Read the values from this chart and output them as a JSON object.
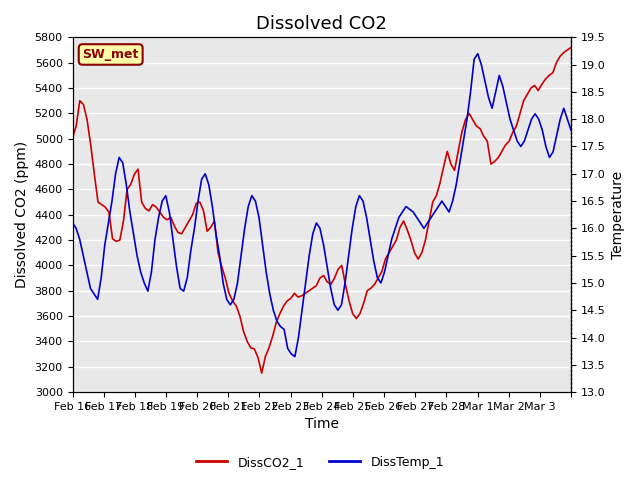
{
  "title": "Dissolved CO2",
  "xlabel": "Time",
  "ylabel_left": "Dissolved CO2 (ppm)",
  "ylabel_right": "Temperature",
  "ylim_left": [
    3000,
    5800
  ],
  "ylim_right": [
    13.0,
    19.5
  ],
  "yticks_left": [
    3000,
    3200,
    3400,
    3600,
    3800,
    4000,
    4200,
    4400,
    4600,
    4800,
    5000,
    5200,
    5400,
    5600,
    5800
  ],
  "yticks_right": [
    13.0,
    13.5,
    14.0,
    14.5,
    15.0,
    15.5,
    16.0,
    16.5,
    17.0,
    17.5,
    18.0,
    18.5,
    19.0,
    19.5
  ],
  "xtick_positions": [
    0,
    1,
    2,
    3,
    4,
    5,
    6,
    7,
    8,
    9,
    10,
    11,
    12,
    13,
    14,
    15,
    16
  ],
  "xtick_labels": [
    "Feb 16",
    "Feb 17",
    "Feb 18",
    "Feb 19",
    "Feb 20",
    "Feb 21",
    "Feb 22",
    "Feb 23",
    "Feb 24",
    "Feb 25",
    "Feb 26",
    "Feb 27",
    "Feb 28",
    "Mar 1",
    "Mar 2",
    "Mar 3",
    ""
  ],
  "legend_label": "SW_met",
  "legend_bg": "#ffffaa",
  "legend_edge": "#8b0000",
  "line1_label": "DissCO2_1",
  "line2_label": "DissTemp_1",
  "line1_color": "#cc0000",
  "line2_color": "#0000cc",
  "bg_color": "#e8e8e8",
  "fig_bg": "#ffffff",
  "grid_color": "#ffffff",
  "title_fontsize": 13,
  "axis_label_fontsize": 10,
  "tick_fontsize": 8,
  "co2_data": [
    5005,
    5100,
    5300,
    5270,
    5150,
    4950,
    4720,
    4500,
    4480,
    4460,
    4420,
    4210,
    4190,
    4200,
    4350,
    4600,
    4640,
    4720,
    4760,
    4500,
    4450,
    4430,
    4480,
    4460,
    4420,
    4380,
    4360,
    4380,
    4310,
    4260,
    4250,
    4300,
    4350,
    4400,
    4490,
    4500,
    4430,
    4270,
    4300,
    4350,
    4100,
    3990,
    3900,
    3780,
    3720,
    3680,
    3600,
    3480,
    3400,
    3350,
    3340,
    3270,
    3150,
    3280,
    3350,
    3440,
    3550,
    3620,
    3680,
    3720,
    3740,
    3780,
    3750,
    3760,
    3780,
    3800,
    3820,
    3840,
    3900,
    3920,
    3870,
    3850,
    3900,
    3970,
    4000,
    3850,
    3720,
    3620,
    3580,
    3620,
    3700,
    3800,
    3820,
    3850,
    3900,
    3950,
    4050,
    4100,
    4150,
    4200,
    4300,
    4350,
    4280,
    4200,
    4100,
    4050,
    4100,
    4200,
    4350,
    4500,
    4550,
    4650,
    4780,
    4900,
    4800,
    4750,
    4900,
    5050,
    5150,
    5200,
    5150,
    5100,
    5080,
    5020,
    4980,
    4800,
    4820,
    4850,
    4900,
    4950,
    4980,
    5050,
    5100,
    5200,
    5300,
    5350,
    5400,
    5420,
    5380,
    5430,
    5470,
    5500,
    5520,
    5600,
    5650,
    5680,
    5700,
    5720
  ],
  "temp_data": [
    16.1,
    16.0,
    15.8,
    15.5,
    15.2,
    14.9,
    14.8,
    14.7,
    15.1,
    15.7,
    16.1,
    16.5,
    17.0,
    17.3,
    17.2,
    16.8,
    16.3,
    15.9,
    15.5,
    15.2,
    15.0,
    14.85,
    15.2,
    15.8,
    16.2,
    16.5,
    16.6,
    16.3,
    15.8,
    15.3,
    14.9,
    14.85,
    15.1,
    15.6,
    16.0,
    16.5,
    16.9,
    17.0,
    16.8,
    16.4,
    15.9,
    15.5,
    15.0,
    14.7,
    14.6,
    14.7,
    15.0,
    15.5,
    16.0,
    16.4,
    16.6,
    16.5,
    16.2,
    15.7,
    15.2,
    14.8,
    14.5,
    14.3,
    14.2,
    14.15,
    13.8,
    13.7,
    13.65,
    14.0,
    14.5,
    15.0,
    15.5,
    15.9,
    16.1,
    16.0,
    15.7,
    15.3,
    14.9,
    14.6,
    14.5,
    14.6,
    15.0,
    15.5,
    16.0,
    16.4,
    16.6,
    16.5,
    16.2,
    15.8,
    15.4,
    15.1,
    15.0,
    15.2,
    15.5,
    15.8,
    16.0,
    16.2,
    16.3,
    16.4,
    16.35,
    16.3,
    16.2,
    16.1,
    16.0,
    16.1,
    16.2,
    16.3,
    16.4,
    16.5,
    16.4,
    16.3,
    16.5,
    16.8,
    17.2,
    17.6,
    18.0,
    18.5,
    19.1,
    19.2,
    19.0,
    18.7,
    18.4,
    18.2,
    18.5,
    18.8,
    18.6,
    18.3,
    18.0,
    17.8,
    17.6,
    17.5,
    17.6,
    17.8,
    18.0,
    18.1,
    18.0,
    17.8,
    17.5,
    17.3,
    17.4,
    17.7,
    18.0,
    18.2,
    18.0,
    17.8
  ]
}
